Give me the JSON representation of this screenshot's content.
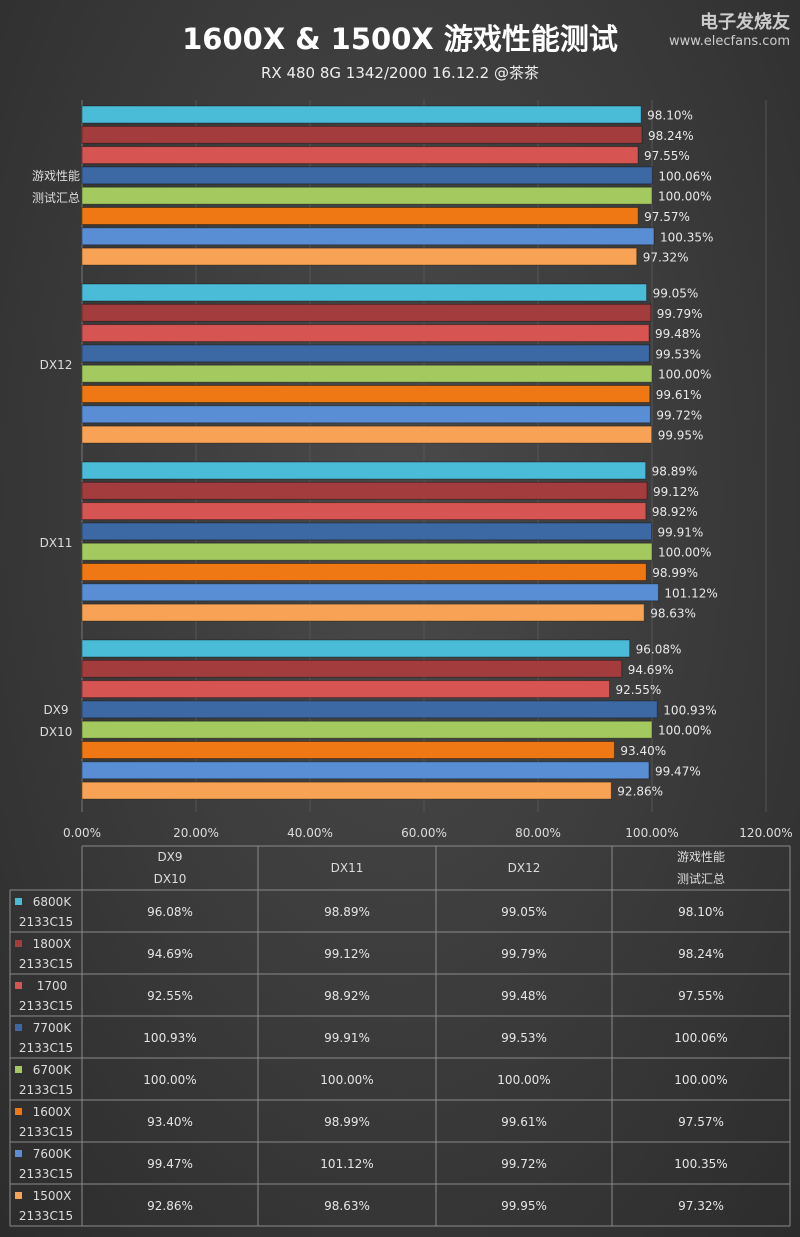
{
  "chart_data": {
    "type": "bar",
    "orientation": "horizontal",
    "title": "1600X & 1500X 游戏性能测试",
    "subtitle": "RX 480 8G 1342/2000 16.12.2 @茶茶",
    "categories": [
      [
        "DX9",
        "DX10"
      ],
      [
        "DX11"
      ],
      [
        "DX12"
      ],
      [
        "游戏性能",
        "测试汇总"
      ]
    ],
    "xlim": [
      0,
      120
    ],
    "x_ticks": [
      "0.00%",
      "20.00%",
      "40.00%",
      "60.00%",
      "80.00%",
      "100.00%",
      "120.00%"
    ],
    "grid": true,
    "legend": "table-bottom",
    "series": [
      {
        "name": [
          "6800K",
          "2133C15"
        ],
        "color": "#4bbcd8",
        "values": [
          96.08,
          98.89,
          99.05,
          98.1
        ],
        "labels": [
          "96.08%",
          "98.89%",
          "99.05%",
          "98.10%"
        ]
      },
      {
        "name": [
          "1800X",
          "2133C15"
        ],
        "color": "#a33d3d",
        "values": [
          94.69,
          99.12,
          99.79,
          98.24
        ],
        "labels": [
          "94.69%",
          "99.12%",
          "99.79%",
          "98.24%"
        ]
      },
      {
        "name": [
          "1700",
          "2133C15"
        ],
        "color": "#d65553",
        "values": [
          92.55,
          98.92,
          99.48,
          97.55
        ],
        "labels": [
          "92.55%",
          "98.92%",
          "99.48%",
          "97.55%"
        ]
      },
      {
        "name": [
          "7700K",
          "2133C15"
        ],
        "color": "#3c68a3",
        "values": [
          100.93,
          99.91,
          99.53,
          100.06
        ],
        "labels": [
          "100.93%",
          "99.91%",
          "99.53%",
          "100.06%"
        ]
      },
      {
        "name": [
          "6700K",
          "2133C15"
        ],
        "color": "#a3c95f",
        "values": [
          100.0,
          100.0,
          100.0,
          100.0
        ],
        "labels": [
          "100.00%",
          "100.00%",
          "100.00%",
          "100.00%"
        ]
      },
      {
        "name": [
          "1600X",
          "2133C15"
        ],
        "color": "#f07814",
        "values": [
          93.4,
          98.99,
          99.61,
          97.57
        ],
        "labels": [
          "93.40%",
          "98.99%",
          "99.61%",
          "97.57%"
        ]
      },
      {
        "name": [
          "7600K",
          "2133C15"
        ],
        "color": "#5a8ed4",
        "values": [
          99.47,
          101.12,
          99.72,
          100.35
        ],
        "labels": [
          "99.47%",
          "101.12%",
          "99.72%",
          "100.35%"
        ]
      },
      {
        "name": [
          "1500X",
          "2133C15"
        ],
        "color": "#f7a255",
        "values": [
          92.86,
          98.63,
          99.95,
          97.32
        ],
        "labels": [
          "92.86%",
          "98.63%",
          "99.95%",
          "97.32%"
        ]
      }
    ]
  },
  "watermark": {
    "brand": "电子发烧友",
    "url": "www.elecfans.com"
  }
}
